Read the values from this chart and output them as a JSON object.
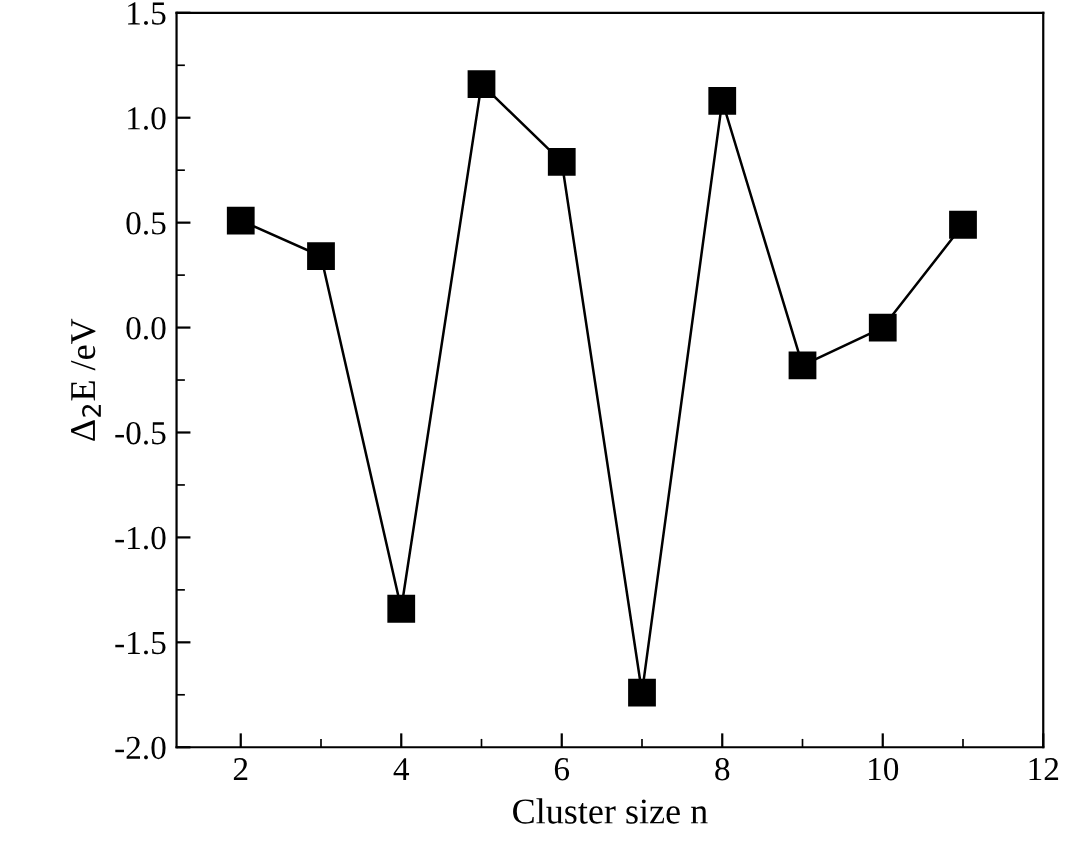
{
  "chart_data": {
    "type": "line",
    "xlabel": "Cluster size n",
    "ylabel": "Δ$_{2}$E /eV",
    "x": [
      2,
      3,
      4,
      5,
      6,
      7,
      8,
      9,
      10,
      11
    ],
    "series": [
      {
        "color": "#000000",
        "values": [
          0.51,
          0.34,
          -1.34,
          1.16,
          0.79,
          -1.74,
          1.08,
          -0.18,
          0.0,
          0.49
        ]
      }
    ],
    "xlim": [
      1.2,
      12
    ],
    "xticks": [
      2,
      4,
      6,
      8,
      10,
      12
    ],
    "ylim": [
      -2.0,
      1.5
    ],
    "yticks": [
      {
        "value": -2.0,
        "label": "-2.0"
      },
      {
        "value": -1.5,
        "label": "-1.5"
      },
      {
        "value": -1.0,
        "label": "-1.0"
      },
      {
        "value": -0.5,
        "label": "-0.5"
      },
      {
        "value": 0.0,
        "label": "0.0"
      },
      {
        "value": 0.5,
        "label": "0.5"
      },
      {
        "value": 1.0,
        "label": "1.0"
      },
      {
        "value": 1.5,
        "label": "1.5"
      }
    ],
    "marker": "square",
    "line_style": "solid",
    "grid": false,
    "legend": false
  }
}
